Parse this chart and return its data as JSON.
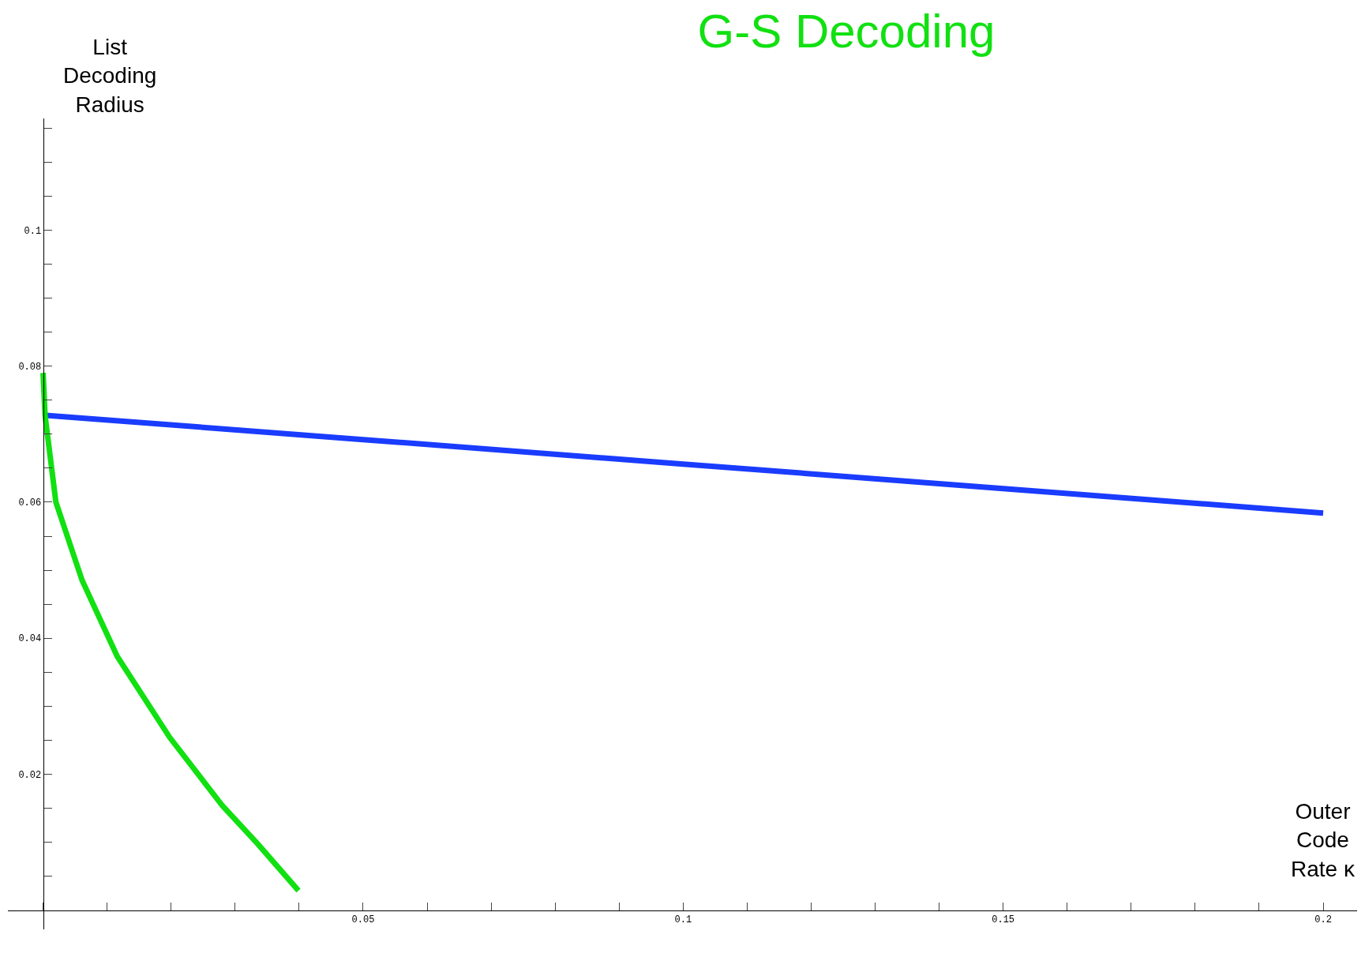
{
  "chart_data": {
    "type": "line",
    "title": "G-S Decoding",
    "xlabel": "Outer Code Rate κ",
    "ylabel": "List Decoding Radius",
    "xlim": [
      -0.0055,
      0.2053
    ],
    "ylim": [
      -0.0028,
      0.1164
    ],
    "xticks": [
      {
        "value": 0,
        "label": null
      },
      {
        "value": 0.01,
        "label": null
      },
      {
        "value": 0.02,
        "label": null
      },
      {
        "value": 0.03,
        "label": null
      },
      {
        "value": 0.04,
        "label": null
      },
      0.05,
      {
        "value": 0.06,
        "label": null
      },
      {
        "value": 0.07,
        "label": null
      },
      {
        "value": 0.08,
        "label": null
      },
      {
        "value": 0.09,
        "label": null
      },
      0.1,
      {
        "value": 0.11,
        "label": null
      },
      {
        "value": 0.12,
        "label": null
      },
      {
        "value": 0.13,
        "label": null
      },
      {
        "value": 0.14,
        "label": null
      },
      0.15,
      {
        "value": 0.16,
        "label": null
      },
      {
        "value": 0.17,
        "label": null
      },
      {
        "value": 0.18,
        "label": null
      },
      {
        "value": 0.19,
        "label": null
      },
      0.2
    ],
    "yticks": [
      {
        "value": 0.005,
        "label": null
      },
      {
        "value": 0.01,
        "label": null
      },
      {
        "value": 0.015,
        "label": null
      },
      0.02,
      {
        "value": 0.025,
        "label": null
      },
      {
        "value": 0.03,
        "label": null
      },
      {
        "value": 0.035,
        "label": null
      },
      0.04,
      {
        "value": 0.045,
        "label": null
      },
      {
        "value": 0.05,
        "label": null
      },
      {
        "value": 0.055,
        "label": null
      },
      0.06,
      {
        "value": 0.065,
        "label": null
      },
      {
        "value": 0.07,
        "label": null
      },
      {
        "value": 0.075,
        "label": null
      },
      0.08,
      {
        "value": 0.085,
        "label": null
      },
      {
        "value": 0.09,
        "label": null
      },
      {
        "value": 0.095,
        "label": null
      },
      0.1,
      {
        "value": 0.105,
        "label": null
      },
      {
        "value": 0.11,
        "label": null
      },
      {
        "value": 0.115,
        "label": null
      }
    ],
    "series": [
      {
        "color": "#1a3cff",
        "x": [
          0,
          0.05,
          0.1,
          0.15,
          0.2
        ],
        "values": [
          0.0728,
          0.0692,
          0.0656,
          0.062,
          0.0584
        ]
      },
      {
        "color": "#11e011",
        "x": [
          0,
          0.0003,
          0.002,
          0.0061,
          0.0116,
          0.0198,
          0.028,
          0.0335,
          0.0399
        ],
        "values": [
          0.079,
          0.0728,
          0.06,
          0.0485,
          0.0373,
          0.0254,
          0.0154,
          0.0098,
          0.0029
        ]
      }
    ]
  }
}
